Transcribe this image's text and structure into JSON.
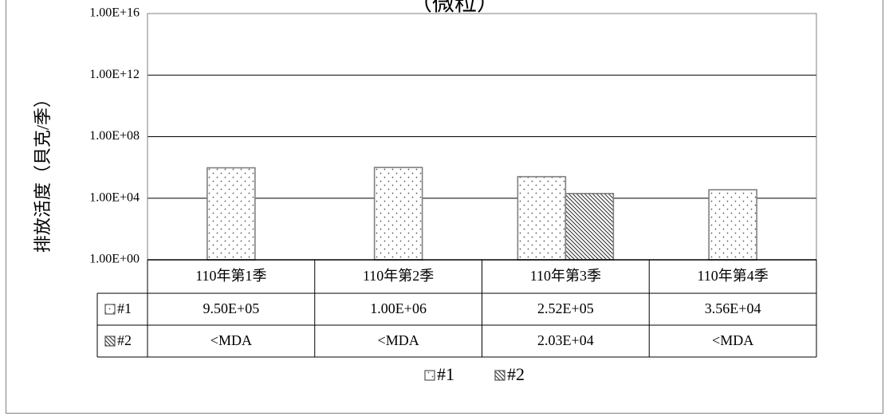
{
  "chart_data": {
    "type": "bar",
    "title": "（微粒）",
    "ylabel": "排放活度（貝克/季）",
    "yscale": "log",
    "ylim": [
      1,
      1e+16
    ],
    "yticks": [
      "1.00E+00",
      "1.00E+04",
      "1.00E+08",
      "1.00E+12",
      "1.00E+16"
    ],
    "categories": [
      "110年第1季",
      "110年第2季",
      "110年第3季",
      "110年第4季"
    ],
    "series": [
      {
        "name": "#1",
        "pattern": "dots",
        "values": [
          950000,
          1000000,
          252000,
          35600
        ],
        "labels": [
          "9.50E+05",
          "1.00E+06",
          "2.52E+05",
          "3.56E+04"
        ]
      },
      {
        "name": "#2",
        "pattern": "diagonal",
        "values": [
          null,
          null,
          20300,
          null
        ],
        "labels": [
          "<MDA",
          "<MDA",
          "2.03E+04",
          "<MDA"
        ]
      }
    ],
    "grid": true,
    "legend": "bottom",
    "data_table": true
  }
}
